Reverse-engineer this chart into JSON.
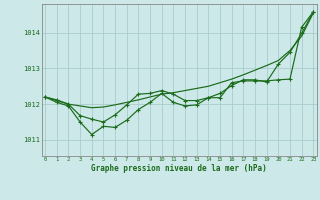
{
  "background_color": "#cce8e8",
  "grid_color": "#aacccc",
  "line_color": "#1a6b1a",
  "title": "Graphe pression niveau de la mer (hPa)",
  "ylabel_ticks": [
    1011,
    1012,
    1013,
    1014
  ],
  "xlabel_ticks": [
    0,
    1,
    2,
    3,
    4,
    5,
    6,
    7,
    8,
    9,
    10,
    11,
    12,
    13,
    14,
    15,
    16,
    17,
    18,
    19,
    20,
    21,
    22,
    23
  ],
  "xlim": [
    -0.3,
    23.3
  ],
  "ylim": [
    1010.55,
    1014.8
  ],
  "smooth_series": [
    1012.2,
    1012.1,
    1012.0,
    1011.95,
    1011.9,
    1011.92,
    1011.98,
    1012.05,
    1012.12,
    1012.2,
    1012.28,
    1012.32,
    1012.38,
    1012.44,
    1012.5,
    1012.6,
    1012.7,
    1012.82,
    1012.95,
    1013.08,
    1013.22,
    1013.5,
    1013.9,
    1014.55
  ],
  "series": [
    [
      1012.2,
      1012.05,
      1011.95,
      1011.5,
      1011.15,
      1011.38,
      1011.35,
      1011.55,
      1011.85,
      1012.05,
      1012.3,
      1012.05,
      1011.95,
      1011.98,
      1012.18,
      1012.18,
      1012.6,
      1012.65,
      1012.65,
      1012.65,
      1012.68,
      1012.7,
      1014.15,
      1014.58
    ],
    [
      1012.2,
      1012.12,
      1012.0,
      1011.68,
      1011.58,
      1011.5,
      1011.7,
      1011.98,
      1012.28,
      1012.3,
      1012.38,
      1012.28,
      1012.1,
      1012.1,
      1012.18,
      1012.3,
      1012.52,
      1012.68,
      1012.68,
      1012.62,
      1013.12,
      1013.45,
      1013.98,
      1014.58
    ]
  ]
}
